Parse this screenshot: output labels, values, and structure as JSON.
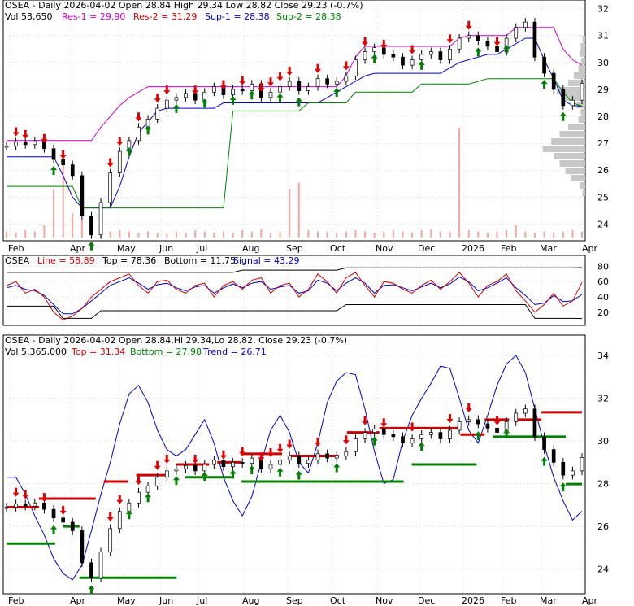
{
  "colors": {
    "up": "#008000",
    "down": "#e00000",
    "trend": "#0000cc",
    "res1": "#cc00cc",
    "res2": "#cc0000",
    "sup1": "#0000cc",
    "sup2": "#008000",
    "volume": "#f4a6a0",
    "profile": "#c8c8c8",
    "oscLine": "#cc0000",
    "oscSignal": "#0000cc",
    "grid": "#c0c0c0"
  },
  "chart_data": [
    {
      "type": "line",
      "panel": "price",
      "header": {
        "line1": {
          "main": "OSEA - Daily 2026-04-02 Open 28.84  High 29.34  Low 28.82  Close 29.23 (-0.7%)"
        },
        "line2": {
          "vol": "Vol 53,650",
          "res1": "Res-1 = 29.90",
          "res2": "Res-2 = 31.29",
          "sup1": "Sup-1 = 28.38",
          "sup2": "Sup-2 = 28.38"
        }
      },
      "x_labels": [
        "Feb",
        "Apr",
        "May",
        "Jun",
        "Jul",
        "Aug",
        "Sep",
        "Oct",
        "Nov",
        "Dec",
        "2026",
        "Feb",
        "Mar",
        "Apr"
      ],
      "y_ticks": [
        24,
        25,
        26,
        27,
        28,
        29,
        30,
        31,
        32
      ],
      "ylim": [
        23.5,
        32.2
      ],
      "close": [
        26.9,
        27.05,
        26.95,
        27.1,
        26.8,
        26.4,
        26.2,
        25.8,
        24.3,
        23.6,
        24.8,
        25.9,
        26.7,
        27.1,
        27.6,
        27.9,
        28.3,
        28.6,
        28.7,
        28.85,
        28.6,
        28.9,
        29.1,
        28.8,
        29.0,
        28.95,
        29.2,
        28.7,
        28.9,
        29.1,
        29.3,
        28.95,
        29.1,
        29.4,
        29.2,
        29.3,
        29.5,
        30.1,
        30.4,
        30.55,
        30.3,
        30.2,
        29.9,
        30.1,
        30.3,
        30.4,
        30.1,
        30.5,
        30.9,
        31.0,
        30.8,
        30.6,
        30.4,
        30.9,
        31.3,
        31.5,
        30.2,
        29.6,
        29.0,
        28.4,
        28.6,
        29.23
      ],
      "res1_line": [
        27.1,
        27.1,
        27.1,
        27.1,
        27.1,
        27.1,
        27.1,
        27.1,
        27.1,
        27.1,
        27.6,
        28.0,
        28.4,
        28.7,
        28.9,
        29.1,
        29.1,
        29.1,
        29.1,
        29.1,
        29.1,
        29.1,
        29.1,
        29.1,
        29.1,
        29.1,
        29.1,
        29.1,
        29.1,
        29.1,
        29.1,
        29.1,
        29.1,
        29.1,
        29.1,
        29.1,
        29.5,
        30.2,
        30.6,
        30.6,
        30.6,
        30.6,
        30.6,
        30.6,
        30.6,
        30.6,
        30.6,
        30.6,
        30.9,
        31.0,
        31.0,
        31.0,
        31.0,
        31.0,
        31.3,
        31.3,
        31.3,
        31.3,
        31.3,
        30.5,
        30.1,
        29.9
      ],
      "sup1_line": [
        26.5,
        26.5,
        26.5,
        26.5,
        26.5,
        26.5,
        25.8,
        25.0,
        24.6,
        24.6,
        24.6,
        24.6,
        25.4,
        26.5,
        27.4,
        27.8,
        28.2,
        28.3,
        28.3,
        28.3,
        28.3,
        28.3,
        28.3,
        28.5,
        28.5,
        28.5,
        28.5,
        28.5,
        28.5,
        28.5,
        28.5,
        28.5,
        28.5,
        28.5,
        28.7,
        28.9,
        29.1,
        29.3,
        29.5,
        29.6,
        29.6,
        29.6,
        29.6,
        29.6,
        29.6,
        29.6,
        29.6,
        29.8,
        30.0,
        30.1,
        30.2,
        30.3,
        30.3,
        30.5,
        30.7,
        30.9,
        30.9,
        30.1,
        29.4,
        28.6,
        28.4,
        28.38
      ],
      "sup2_line": [
        25.4,
        25.4,
        25.4,
        25.4,
        25.4,
        25.4,
        25.4,
        25.4,
        24.6,
        24.6,
        24.6,
        24.6,
        24.6,
        24.6,
        24.6,
        24.6,
        24.6,
        24.6,
        24.6,
        24.6,
        24.6,
        24.6,
        24.6,
        24.6,
        28.2,
        28.2,
        28.2,
        28.2,
        28.2,
        28.2,
        28.2,
        28.2,
        28.5,
        28.5,
        28.5,
        28.5,
        28.5,
        28.9,
        28.9,
        28.9,
        28.9,
        28.9,
        28.9,
        28.9,
        29.2,
        29.2,
        29.2,
        29.2,
        29.2,
        29.2,
        29.3,
        29.4,
        29.4,
        29.4,
        29.4,
        29.4,
        29.4,
        29.4,
        29.4,
        28.9,
        28.5,
        28.38
      ],
      "volume": [
        0.05,
        0.04,
        0.06,
        0.05,
        0.1,
        0.4,
        0.7,
        0.2,
        0.15,
        0.1,
        0.08,
        0.05,
        0.06,
        0.05,
        0.04,
        0.05,
        0.04,
        0.03,
        0.05,
        0.04,
        0.06,
        0.05,
        0.04,
        0.05,
        0.04,
        0.06,
        0.05,
        0.07,
        0.04,
        0.05,
        0.4,
        0.45,
        0.06,
        0.05,
        0.05,
        0.04,
        0.05,
        0.06,
        0.05,
        0.04,
        0.05,
        0.06,
        0.05,
        0.04,
        0.06,
        0.07,
        0.05,
        0.05,
        0.9,
        0.06,
        0.05,
        0.04,
        0.05,
        0.06,
        0.1,
        0.05,
        0.04,
        0.05,
        0.04,
        0.05,
        0.06,
        0.05
      ],
      "volume_profile": [
        0.05,
        0.08,
        0.1,
        0.07,
        0.12,
        0.2,
        0.3,
        0.5,
        0.35,
        0.15,
        0.08,
        0.12,
        0.3,
        0.45,
        0.6,
        0.75,
        0.55,
        0.45,
        0.35,
        0.25,
        0.1,
        0.05
      ],
      "down_arrows": [
        1,
        2,
        4,
        6,
        11,
        12,
        14,
        16,
        17,
        20,
        23,
        25,
        27,
        28,
        29,
        30,
        33,
        36,
        38,
        40,
        43,
        47,
        49,
        52
      ],
      "up_arrows": [
        5,
        9,
        13,
        15,
        18,
        21,
        24,
        26,
        29,
        31,
        35,
        39,
        44,
        50,
        53,
        57,
        59
      ]
    },
    {
      "type": "line",
      "panel": "oscillator",
      "header": {
        "name": "OSEA",
        "line": "Line = 58.89",
        "top": "Top = 78.36",
        "bottom": "Bottom = 11.75",
        "signal": "Signal = 43.29"
      },
      "y_ticks": [
        20,
        40,
        60,
        80
      ],
      "ylim": [
        5,
        90
      ],
      "line_values": [
        55,
        60,
        45,
        50,
        40,
        20,
        10,
        15,
        25,
        40,
        50,
        60,
        65,
        70,
        55,
        45,
        60,
        62,
        50,
        45,
        55,
        58,
        40,
        55,
        60,
        50,
        62,
        65,
        45,
        55,
        58,
        40,
        50,
        70,
        60,
        45,
        65,
        72,
        55,
        40,
        60,
        58,
        50,
        45,
        55,
        62,
        50,
        60,
        72,
        58,
        40,
        55,
        60,
        70,
        48,
        35,
        20,
        30,
        45,
        28,
        35,
        58.89
      ],
      "signal_values": [
        52,
        55,
        50,
        48,
        42,
        30,
        18,
        18,
        25,
        35,
        45,
        55,
        60,
        65,
        58,
        50,
        56,
        58,
        52,
        48,
        53,
        55,
        45,
        52,
        57,
        52,
        58,
        60,
        50,
        53,
        55,
        45,
        48,
        62,
        58,
        48,
        58,
        65,
        58,
        45,
        55,
        56,
        52,
        48,
        53,
        58,
        52,
        57,
        66,
        60,
        48,
        52,
        58,
        65,
        52,
        42,
        30,
        32,
        42,
        34,
        35,
        43.29
      ],
      "top_values": [
        72,
        72,
        72,
        72,
        72,
        72,
        72,
        72,
        72,
        72,
        72,
        72,
        72,
        72,
        72,
        72,
        72,
        72,
        72,
        72,
        72,
        72,
        72,
        72,
        72,
        75,
        75,
        75,
        75,
        75,
        75,
        75,
        75,
        75,
        75,
        75,
        78,
        78,
        78,
        78,
        78,
        78,
        78,
        78,
        78,
        78,
        78,
        78,
        78,
        78,
        78,
        78,
        78,
        78,
        78,
        78,
        78,
        78,
        78,
        78,
        78,
        78.36
      ],
      "bottom_values": [
        28,
        28,
        28,
        28,
        28,
        28,
        12,
        12,
        12,
        12,
        22,
        22,
        22,
        22,
        22,
        22,
        22,
        22,
        22,
        22,
        22,
        22,
        22,
        22,
        22,
        22,
        22,
        22,
        22,
        22,
        22,
        22,
        22,
        22,
        22,
        22,
        30,
        30,
        30,
        30,
        30,
        30,
        30,
        30,
        30,
        30,
        30,
        30,
        30,
        30,
        30,
        30,
        30,
        30,
        30,
        30,
        12,
        12,
        12,
        12,
        12,
        11.75
      ]
    },
    {
      "type": "line",
      "panel": "trend",
      "header": {
        "line1": "OSEA - Daily 2026-04-02 Open 28.84,Hi 29.34,Lo 28.82, Close 29.23 (-0.7%)",
        "vol": "Vol 5,365,000",
        "top": "Top = 31.34",
        "bottom": "Bottom = 27.98",
        "trend": "Trend = 26.71"
      },
      "x_labels": [
        "Feb",
        "Apr",
        "May",
        "Jun",
        "Jul",
        "Aug",
        "Sep",
        "Oct",
        "Nov",
        "Dec",
        "2026",
        "Feb",
        "Mar",
        "Apr"
      ],
      "y_ticks": [
        24,
        26,
        28,
        30,
        32,
        34
      ],
      "ylim": [
        23,
        34.8
      ],
      "close": [
        26.9,
        27.05,
        26.95,
        27.1,
        26.8,
        26.4,
        26.2,
        25.8,
        24.3,
        23.6,
        24.8,
        25.9,
        26.7,
        27.1,
        27.6,
        27.9,
        28.3,
        28.6,
        28.7,
        28.85,
        28.6,
        28.9,
        29.1,
        28.8,
        29.0,
        28.95,
        29.2,
        28.7,
        28.9,
        29.1,
        29.3,
        28.95,
        29.1,
        29.4,
        29.2,
        29.3,
        29.5,
        30.1,
        30.4,
        30.55,
        30.3,
        30.2,
        29.9,
        30.1,
        30.3,
        30.4,
        30.1,
        30.5,
        30.9,
        31.0,
        30.8,
        30.6,
        30.4,
        30.9,
        31.3,
        31.5,
        30.2,
        29.6,
        29.0,
        28.4,
        28.6,
        29.23
      ],
      "trend_values": [
        28.3,
        28.3,
        27.5,
        26.5,
        25.6,
        24.5,
        23.8,
        23.5,
        24.2,
        25.8,
        27.5,
        29.0,
        30.8,
        32.2,
        32.6,
        31.8,
        30.5,
        29.6,
        29.3,
        29.6,
        30.3,
        31.0,
        29.9,
        28.3,
        27.2,
        26.5,
        27.4,
        29.0,
        30.5,
        31.2,
        30.4,
        29.0,
        28.5,
        29.9,
        31.8,
        32.8,
        33.2,
        33.1,
        31.5,
        29.5,
        28.0,
        28.2,
        30.0,
        31.2,
        32.0,
        32.7,
        33.5,
        33.4,
        32.0,
        30.5,
        29.9,
        31.2,
        32.6,
        33.6,
        34.0,
        33.2,
        31.5,
        29.8,
        28.3,
        27.2,
        26.3,
        26.71
      ],
      "resistance_segments": [
        {
          "from": 0,
          "to": 4,
          "y": 26.9
        },
        {
          "from": 4,
          "to": 11,
          "y": 27.3
        },
        {
          "from": 12,
          "to": 15,
          "y": 28.1
        },
        {
          "from": 16,
          "to": 20,
          "y": 28.4
        },
        {
          "from": 21,
          "to": 25,
          "y": 28.9
        },
        {
          "from": 26,
          "to": 29,
          "y": 29.0
        },
        {
          "from": 29,
          "to": 34,
          "y": 29.4
        },
        {
          "from": 35,
          "to": 41,
          "y": 29.3
        },
        {
          "from": 42,
          "to": 46,
          "y": 30.4
        },
        {
          "from": 46,
          "to": 56,
          "y": 30.6
        },
        {
          "from": 56,
          "to": 59,
          "y": 30.3
        },
        {
          "from": 59,
          "to": 62,
          "y": 31.0
        },
        {
          "from": 63,
          "to": 66,
          "y": 31.0
        },
        {
          "from": 66,
          "to": 71,
          "y": 31.34
        }
      ],
      "support_segments": [
        {
          "from": 0,
          "to": 6,
          "y": 25.2
        },
        {
          "from": 7,
          "to": 9,
          "y": 26.0
        },
        {
          "from": 9,
          "to": 21,
          "y": 23.6
        },
        {
          "from": 22,
          "to": 28,
          "y": 28.3
        },
        {
          "from": 29,
          "to": 49,
          "y": 28.1
        },
        {
          "from": 50,
          "to": 58,
          "y": 28.9
        },
        {
          "from": 60,
          "to": 69,
          "y": 30.2
        },
        {
          "from": 69,
          "to": 71,
          "y": 27.98
        }
      ],
      "down_arrows": [
        1,
        2,
        4,
        6,
        11,
        12,
        14,
        16,
        17,
        20,
        23,
        25,
        27,
        28,
        29,
        30,
        33,
        36,
        38,
        40,
        43,
        47,
        49,
        52
      ],
      "up_arrows": [
        5,
        9,
        13,
        15,
        18,
        21,
        24,
        26,
        29,
        31,
        35,
        39,
        44,
        50,
        53,
        57,
        59
      ]
    }
  ]
}
